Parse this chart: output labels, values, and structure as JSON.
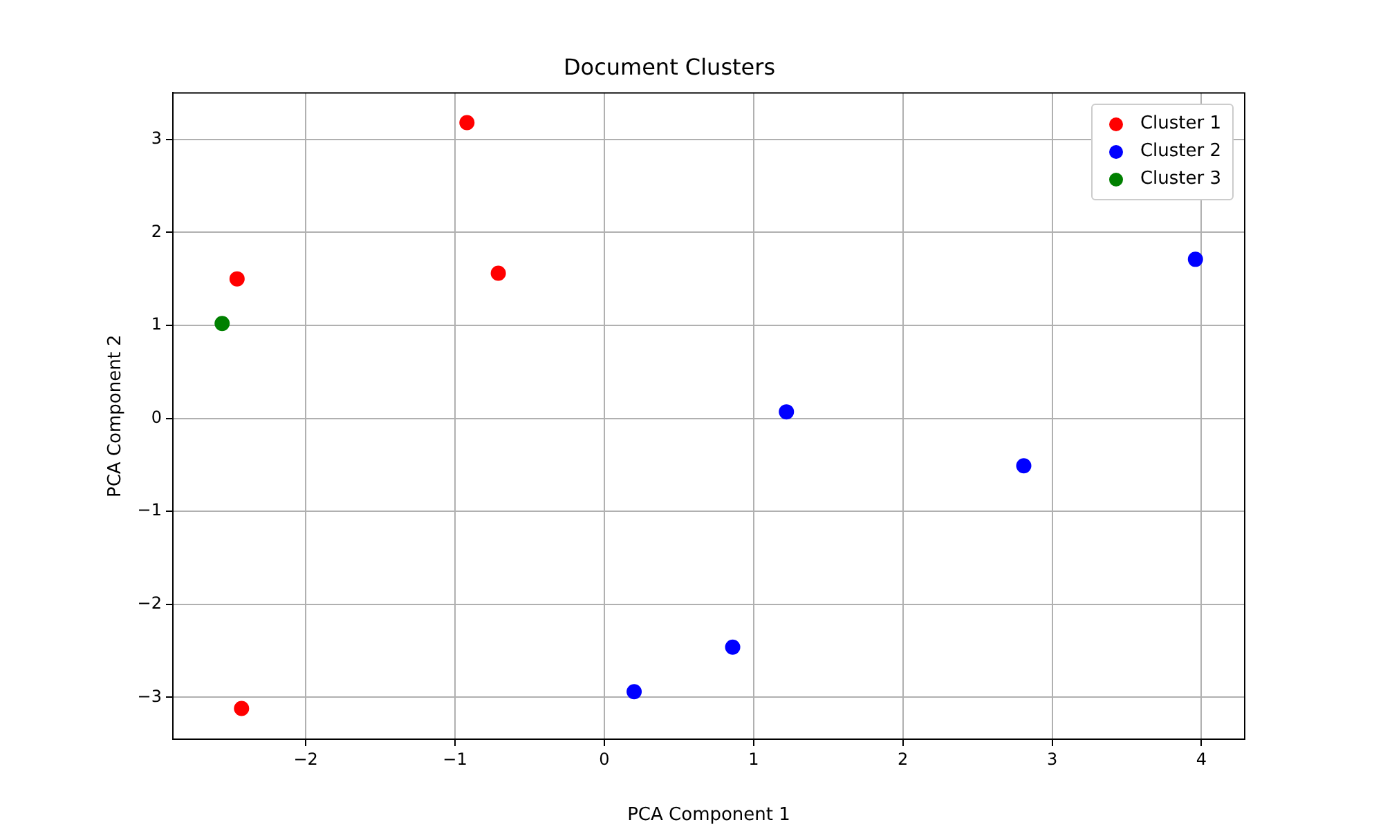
{
  "chart_data": {
    "type": "scatter",
    "title": "Document Clusters",
    "xlabel": "PCA Component 1",
    "ylabel": "PCA Component 2",
    "xlim": [
      -2.89,
      4.29
    ],
    "ylim": [
      -3.45,
      3.5
    ],
    "xticks": [
      {
        "value": -2,
        "label": "−2"
      },
      {
        "value": -1,
        "label": "−1"
      },
      0,
      1,
      2,
      3,
      4
    ],
    "yticks": [
      {
        "value": -3,
        "label": "−3"
      },
      {
        "value": -2,
        "label": "−2"
      },
      {
        "value": -1,
        "label": "−1"
      },
      0,
      1,
      2,
      3
    ],
    "grid": true,
    "legend": "top right",
    "marker": "circle",
    "series": [
      {
        "name": "Cluster 1",
        "color": "#ff0000",
        "x": [
          -0.92,
          -2.46,
          -0.71,
          -2.43
        ],
        "values": [
          3.18,
          1.5,
          1.56,
          -3.12
        ]
      },
      {
        "name": "Cluster 2",
        "color": "#0000ff",
        "x": [
          3.96,
          1.22,
          2.81,
          0.86,
          0.2
        ],
        "values": [
          1.71,
          0.07,
          -0.51,
          -2.46,
          -2.94
        ]
      },
      {
        "name": "Cluster 3",
        "color": "#008000",
        "x": [
          -2.56
        ],
        "values": [
          1.02
        ]
      }
    ]
  }
}
